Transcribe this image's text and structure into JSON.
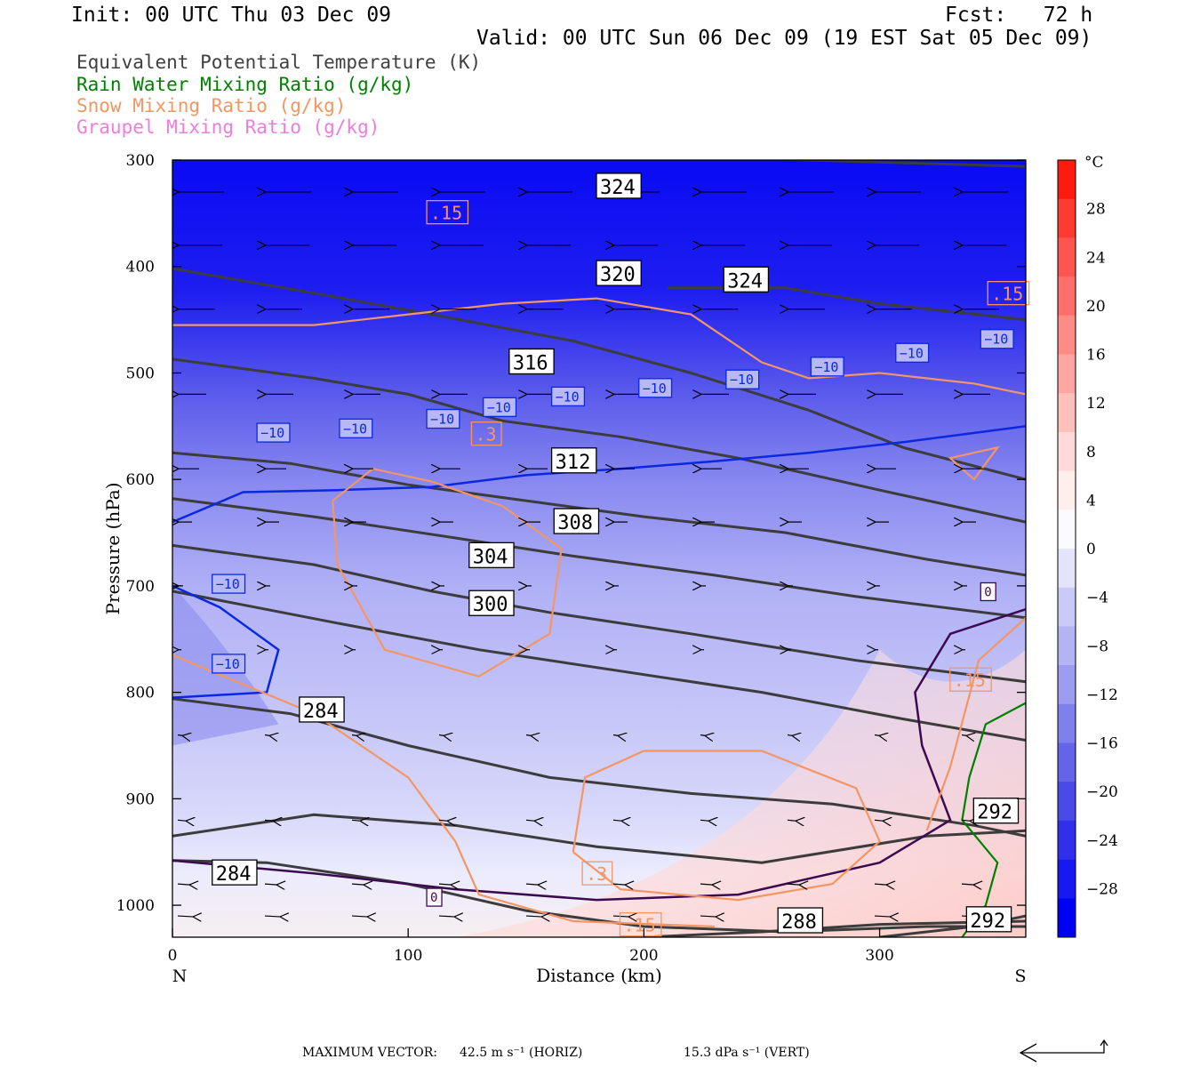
{
  "header": {
    "init": "Init: 00 UTC Thu 03 Dec 09",
    "fcst": "Fcst:   72 h",
    "valid": "Valid: 00 UTC Sun 06 Dec 09 (19 EST Sat 05 Dec 09)"
  },
  "legend": [
    {
      "label": "Equivalent Potential Temperature (K)",
      "color": "#404040"
    },
    {
      "label": "Rain Water Mixing Ratio (g/kg)",
      "color": "#008000"
    },
    {
      "label": "Snow Mixing Ratio (g/kg)",
      "color": "#f49664"
    },
    {
      "label": "Graupel Mixing Ratio (g/kg)",
      "color": "#f07ce0"
    }
  ],
  "footer": {
    "max_vector_label": "MAXIMUM VECTOR:",
    "horiz": "42.5 m s⁻¹ (HORIZ)",
    "vert": "15.3 dPa s⁻¹ (VERT)"
  },
  "chart_data": {
    "type": "cross-section",
    "xlabel": "Distance (km)",
    "ylabel": "Pressure (hPa)",
    "xlim": [
      0,
      362
    ],
    "ylim": [
      1030,
      300
    ],
    "x_ticks": [
      "0",
      "100",
      "200",
      "300"
    ],
    "x_tick_values": [
      0,
      100,
      200,
      300
    ],
    "y_ticks": [
      "300",
      "400",
      "500",
      "600",
      "700",
      "800",
      "900",
      "1000"
    ],
    "y_tick_values": [
      300,
      400,
      500,
      600,
      700,
      800,
      900,
      1000
    ],
    "left_end_label": "N",
    "right_end_label": "S",
    "colorbar": {
      "unit": "°C",
      "tick_labels": [
        "28",
        "24",
        "20",
        "16",
        "12",
        "8",
        "4",
        "0",
        "−4",
        "−8",
        "−12",
        "−16",
        "−20",
        "−24",
        "−28"
      ],
      "tick_values": [
        28,
        24,
        20,
        16,
        12,
        8,
        4,
        0,
        -4,
        -8,
        -12,
        -16,
        -20,
        -24,
        -28
      ],
      "range": [
        -32,
        32
      ],
      "bands": [
        "#ff1a10",
        "#ff3a30",
        "#ff5550",
        "#ff6e6a",
        "#ff8a86",
        "#ffa6a2",
        "#ffc0bc",
        "#ffdad8",
        "#ffeeec",
        "#fafaff",
        "#e4e4fc",
        "#cacaf8",
        "#b4b4f4",
        "#9c9cf0",
        "#8080ec",
        "#6464e8",
        "#4a4ae8",
        "#3030ec",
        "#1818f0",
        "#0000f4"
      ]
    },
    "temperature_field": [
      {
        "name": "upper",
        "from_p": 300,
        "to_p": 440,
        "color": "#1414f0"
      },
      {
        "name": "mid",
        "from_p": 440,
        "to_p": 600,
        "color": "#7a7aee"
      },
      {
        "name": "lower",
        "from_p": 600,
        "to_p": 800,
        "color": "#b8b8f6"
      },
      {
        "name": "low-level",
        "from_p": 800,
        "to_p": 940,
        "color": "#d8d8fa"
      }
    ],
    "theta_e_contours": [
      {
        "label": "324",
        "points": [
          [
            0,
            283
          ],
          [
            60,
            286
          ],
          [
            120,
            290
          ],
          [
            180,
            294
          ],
          [
            240,
            298
          ],
          [
            300,
            302
          ],
          [
            362,
            306
          ]
        ],
        "label_at": [
          181,
          330
        ]
      },
      {
        "label": "324",
        "points": [
          [
            210,
            420
          ],
          [
            260,
            420
          ],
          [
            300,
            435
          ],
          [
            362,
            450
          ]
        ],
        "label_at": [
          235,
          418
        ]
      },
      {
        "label": "320",
        "points": [
          [
            0,
            402
          ],
          [
            60,
            425
          ],
          [
            110,
            445
          ],
          [
            170,
            470
          ],
          [
            220,
            500
          ],
          [
            270,
            535
          ],
          [
            310,
            570
          ],
          [
            362,
            600
          ]
        ],
        "label_at": [
          181,
          412
        ]
      },
      {
        "label": "316",
        "points": [
          [
            0,
            487
          ],
          [
            60,
            505
          ],
          [
            100,
            520
          ],
          [
            140,
            545
          ],
          [
            190,
            560
          ],
          [
            240,
            580
          ],
          [
            300,
            610
          ],
          [
            362,
            640
          ]
        ],
        "label_at": [
          144,
          495
        ]
      },
      {
        "label": "312",
        "points": [
          [
            0,
            575
          ],
          [
            50,
            585
          ],
          [
            100,
            605
          ],
          [
            150,
            620
          ],
          [
            200,
            635
          ],
          [
            260,
            650
          ],
          [
            320,
            675
          ],
          [
            362,
            690
          ]
        ],
        "label_at": [
          162,
          588
        ]
      },
      {
        "label": "308",
        "points": [
          [
            0,
            618
          ],
          [
            60,
            635
          ],
          [
            120,
            655
          ],
          [
            170,
            672
          ],
          [
            230,
            690
          ],
          [
            290,
            710
          ],
          [
            362,
            730
          ]
        ],
        "label_at": [
          163,
          645
        ]
      },
      {
        "label": "304",
        "points": [
          [
            0,
            662
          ],
          [
            60,
            680
          ],
          [
            110,
            705
          ],
          [
            160,
            725
          ],
          [
            220,
            745
          ],
          [
            290,
            770
          ],
          [
            362,
            790
          ]
        ],
        "label_at": [
          127,
          677
        ]
      },
      {
        "label": "300",
        "points": [
          [
            0,
            705
          ],
          [
            70,
            735
          ],
          [
            130,
            760
          ],
          [
            190,
            780
          ],
          [
            250,
            800
          ],
          [
            310,
            825
          ],
          [
            362,
            845
          ]
        ],
        "label_at": [
          127,
          722
        ]
      },
      {
        "label": "284",
        "points": [
          [
            0,
            806
          ],
          [
            50,
            820
          ],
          [
            100,
            850
          ],
          [
            160,
            880
          ],
          [
            220,
            895
          ],
          [
            280,
            905
          ],
          [
            340,
            925
          ],
          [
            362,
            935
          ]
        ],
        "label_at": [
          55,
          822
        ]
      },
      {
        "label": "292",
        "points": [
          [
            0,
            935
          ],
          [
            60,
            915
          ],
          [
            120,
            925
          ],
          [
            180,
            945
          ],
          [
            250,
            960
          ],
          [
            320,
            935
          ],
          [
            362,
            930
          ]
        ],
        "label_at": [
          341,
          917
        ]
      },
      {
        "label": "284",
        "points": [
          [
            0,
            958
          ],
          [
            40,
            960
          ],
          [
            70,
            970
          ],
          [
            100,
            980
          ],
          [
            150,
            1005
          ],
          [
            200,
            1020
          ],
          [
            260,
            1025
          ],
          [
            320,
            1020
          ],
          [
            362,
            1020
          ]
        ],
        "label_at": [
          18,
          975
        ]
      },
      {
        "label": "288",
        "points": [
          [
            200,
            1030
          ],
          [
            250,
            1025
          ],
          [
            300,
            1018
          ],
          [
            362,
            1015
          ]
        ],
        "label_at": [
          258,
          1020
        ]
      },
      {
        "label": "292",
        "points": [
          [
            300,
            1030
          ],
          [
            340,
            1020
          ],
          [
            362,
            1010
          ]
        ],
        "label_at": [
          338,
          1019
        ]
      }
    ],
    "isotherm_minus10": {
      "label": "−10",
      "points": [
        [
          0,
          640
        ],
        [
          30,
          612
        ],
        [
          70,
          610
        ],
        [
          110,
          607
        ],
        [
          150,
          596
        ],
        [
          190,
          590
        ],
        [
          230,
          583
        ],
        [
          270,
          575
        ],
        [
          310,
          565
        ],
        [
          362,
          550
        ]
      ],
      "label_positions": [
        [
          37,
          559
        ],
        [
          72,
          555
        ],
        [
          109,
          546
        ],
        [
          133,
          535
        ],
        [
          162,
          525
        ],
        [
          199,
          517
        ],
        [
          236,
          509
        ],
        [
          272,
          497
        ],
        [
          308,
          484
        ],
        [
          344,
          471
        ]
      ]
    },
    "isotherm_minus10_low": {
      "label": "−10",
      "points": [
        [
          0,
          700
        ],
        [
          20,
          720
        ],
        [
          45,
          760
        ],
        [
          40,
          800
        ],
        [
          0,
          805
        ]
      ],
      "label_positions": [
        [
          18,
          701
        ],
        [
          18,
          776
        ]
      ]
    },
    "isotherm_0": {
      "label": "0",
      "points": [
        [
          0,
          958
        ],
        [
          60,
          970
        ],
        [
          120,
          985
        ],
        [
          180,
          995
        ],
        [
          240,
          990
        ],
        [
          300,
          960
        ],
        [
          330,
          920
        ],
        [
          318,
          850
        ],
        [
          315,
          800
        ],
        [
          330,
          745
        ],
        [
          362,
          722
        ]
      ],
      "label_positions": [
        [
          109,
          995
        ],
        [
          344,
          708
        ]
      ]
    },
    "snow_contours": [
      {
        "label": ".15",
        "points": [
          [
            0,
            455
          ],
          [
            60,
            455
          ],
          [
            100,
            445
          ],
          [
            140,
            435
          ],
          [
            180,
            430
          ],
          [
            220,
            445
          ],
          [
            250,
            490
          ],
          [
            270,
            505
          ],
          [
            300,
            500
          ],
          [
            340,
            510
          ],
          [
            362,
            520
          ]
        ],
        "label_at": [
          109,
          354
        ]
      },
      {
        "label": ".15",
        "points": [
          [
            0,
            765
          ],
          [
            60,
            820
          ],
          [
            100,
            880
          ],
          [
            120,
            940
          ],
          [
            130,
            990
          ],
          [
            170,
            1015
          ],
          [
            230,
            1020
          ]
        ],
        "label_at": [
          191,
          1023
        ]
      },
      {
        "label": ".3",
        "points": [
          [
            68,
            620
          ],
          [
            85,
            590
          ],
          [
            110,
            602
          ],
          [
            140,
            625
          ],
          [
            165,
            665
          ],
          [
            160,
            745
          ],
          [
            130,
            785
          ],
          [
            90,
            760
          ],
          [
            70,
            680
          ],
          [
            68,
            620
          ]
        ],
        "label_at": [
          128,
          562
        ]
      },
      {
        "label": ".3",
        "points": [
          [
            170,
            950
          ],
          [
            175,
            880
          ],
          [
            200,
            855
          ],
          [
            250,
            855
          ],
          [
            290,
            890
          ],
          [
            300,
            940
          ],
          [
            280,
            980
          ],
          [
            240,
            995
          ],
          [
            190,
            985
          ],
          [
            170,
            950
          ]
        ],
        "label_at": [
          175,
          975
        ]
      },
      {
        "label": ".15",
        "points": [
          [
            320,
            930
          ],
          [
            330,
            870
          ],
          [
            342,
            770
          ],
          [
            362,
            730
          ]
        ],
        "label_at": [
          331,
          793
        ]
      },
      {
        "label": ".15",
        "points": [
          [
            340,
            600
          ],
          [
            350,
            570
          ],
          [
            330,
            580
          ],
          [
            340,
            600
          ]
        ],
        "label_at": [
          347,
          430
        ]
      }
    ],
    "rain_contours": [
      {
        "points": [
          [
            362,
            810
          ],
          [
            345,
            830
          ],
          [
            338,
            880
          ],
          [
            335,
            920
          ],
          [
            350,
            960
          ],
          [
            345,
            1000
          ],
          [
            335,
            1030
          ]
        ]
      }
    ],
    "graupel_contours": [],
    "wind_vectors_note": "horizontal wind vectors drawn as arrows; maximum vector 42.5 m/s (horiz), 15.3 dPa/s (vert)",
    "grid": false
  }
}
